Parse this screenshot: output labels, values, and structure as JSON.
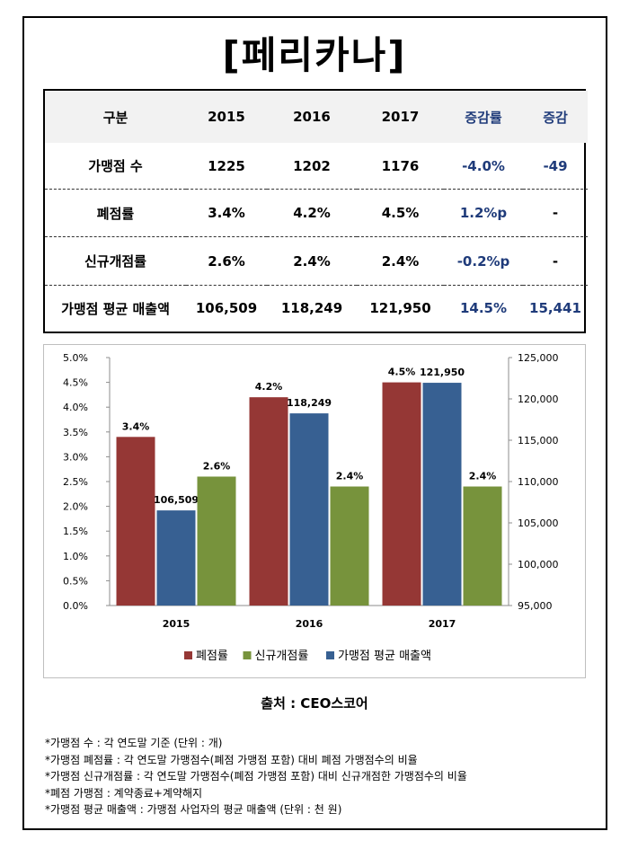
{
  "title": "[페리카나]",
  "table": {
    "headers": [
      "구분",
      "2015",
      "2016",
      "2017",
      "증감률",
      "증감"
    ],
    "rows": [
      {
        "label": "가맹점 수",
        "v2015": "1225",
        "v2016": "1202",
        "v2017": "1176",
        "rate": "-4.0%",
        "diff": "-49"
      },
      {
        "label": "폐점률",
        "v2015": "3.4%",
        "v2016": "4.2%",
        "v2017": "4.5%",
        "rate": "1.2%p",
        "diff": "-"
      },
      {
        "label": "신규개점률",
        "v2015": "2.6%",
        "v2016": "2.4%",
        "v2017": "2.4%",
        "rate": "-0.2%p",
        "diff": "-"
      },
      {
        "label": "가맹점 평균 매출액",
        "v2015": "106,509",
        "v2016": "118,249",
        "v2017": "121,950",
        "rate": "14.5%",
        "diff": "15,441"
      }
    ]
  },
  "chart_data": {
    "type": "bar",
    "categories": [
      "2015",
      "2016",
      "2017"
    ],
    "series": [
      {
        "name": "폐점률",
        "axis": "left",
        "color": "#953735",
        "values": [
          3.4,
          4.2,
          4.5
        ],
        "labels": [
          "3.4%",
          "4.2%",
          "4.5%"
        ]
      },
      {
        "name": "가맹점 평균 매출액",
        "axis": "right",
        "color": "#376092",
        "values": [
          106509,
          118249,
          121950
        ],
        "labels": [
          "106,509",
          "118,249",
          "121,950"
        ]
      },
      {
        "name": "신규개점률",
        "axis": "left",
        "color": "#77933c",
        "values": [
          2.6,
          2.4,
          2.4
        ],
        "labels": [
          "2.6%",
          "2.4%",
          "2.4%"
        ]
      }
    ],
    "legend_order": [
      "폐점률",
      "신규개점률",
      "가맹점 평균 매출액"
    ],
    "y_left": {
      "min": 0,
      "max": 5,
      "step": 0.5,
      "ticks": [
        "0.0%",
        "0.5%",
        "1.0%",
        "1.5%",
        "2.0%",
        "2.5%",
        "3.0%",
        "3.5%",
        "4.0%",
        "4.5%",
        "5.0%"
      ]
    },
    "y_right": {
      "min": 95000,
      "max": 125000,
      "step": 5000,
      "ticks": [
        "95,000",
        "100,000",
        "105,000",
        "110,000",
        "115,000",
        "120,000",
        "125,000"
      ]
    },
    "legend_position": "bottom",
    "grid": false
  },
  "source": "출처 : CEO스코어",
  "notes": [
    "*가맹점 수 : 각 연도말 기준 (단위 : 개)",
    "*가맹점 폐점률 : 각 연도말 가맹점수(폐점 가맹점 포함) 대비 폐점 가맹점수의 비율",
    "*가맹점 신규개점률 : 각 연도말 가맹점수(폐점 가맹점 포함) 대비 신규개점한 가맹점수의 비율",
    "*폐점 가맹점 : 계약종료+계약해지",
    "*가맹점 평균 매출액 : 가맹점 사업자의 평균 매출액 (단위 : 천 원)"
  ]
}
